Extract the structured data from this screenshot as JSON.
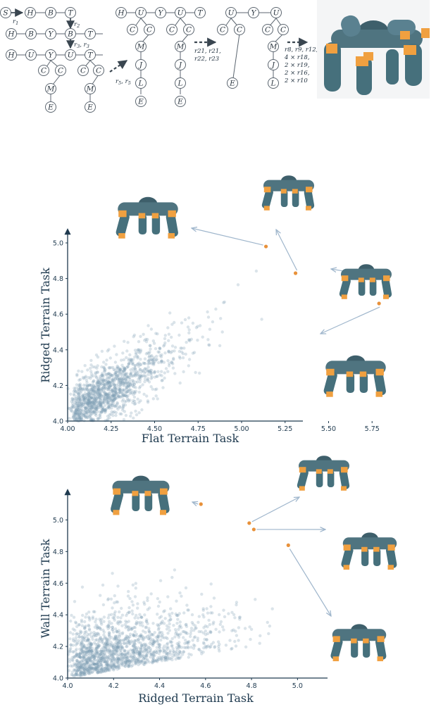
{
  "grammar_diagram": {
    "stage1": {
      "start_node": "S",
      "rule_first": "r",
      "rule_first_sub": "1",
      "row1": [
        "H",
        "B",
        "T"
      ],
      "rule_second": "r",
      "rule_second_sub": "2",
      "row2": [
        "H",
        "B",
        "Y",
        "B",
        "T"
      ],
      "rule_third": "r",
      "rule_third_sub": "3",
      "rule_third_b": "r",
      "rule_third_b_sub": "3",
      "row3": [
        "H",
        "U",
        "Y",
        "U",
        "T"
      ],
      "row3_children": [
        "C",
        "C",
        "M",
        "E",
        "C",
        "C",
        "M",
        "E"
      ]
    },
    "transition1": "r",
    "transition1_sub": "5",
    "transition1_sep": ", ",
    "transition1_b": "r",
    "transition1_b_sub": "5",
    "stage2": {
      "row1": [
        "H",
        "U",
        "Y",
        "U",
        "T"
      ],
      "chain": [
        "C",
        "C",
        "M",
        "J",
        "L",
        "E"
      ],
      "chain2": [
        "C",
        "C",
        "M",
        "J",
        "L",
        "E"
      ]
    },
    "transition2_line1": "r21, r21,",
    "transition2_line2": "r22, r23",
    "stage3": {
      "row1": [
        "U",
        "Y",
        "U"
      ],
      "chain": [
        "C",
        "C",
        "M",
        "J",
        "L",
        "E"
      ]
    },
    "transition3_lines": [
      "r8, r9, r12,",
      "4 × r18,",
      "2 × r19,",
      "2 × r16,",
      "2 × r10"
    ]
  },
  "colors": {
    "point_default": "#7f9db5",
    "point_highlight": "#e8913a",
    "axis": "#1f3a4f",
    "robot_body": "#4f7480",
    "robot_joint": "#f0a040"
  },
  "chart_data": [
    {
      "type": "scatter",
      "xlabel": "Flat Terrain Task",
      "ylabel": "Ridged Terrain Task",
      "xlim": [
        4.0,
        6.0
      ],
      "ylim": [
        4.0,
        5.0
      ],
      "xticks": [
        "4.00",
        "4.25",
        "4.50",
        "4.75",
        "5.00",
        "5.25",
        "5.50",
        "5.75"
      ],
      "yticks": [
        "4.0",
        "4.2",
        "4.4",
        "4.6",
        "4.8",
        "5.0"
      ],
      "cloud": {
        "n": 1400,
        "description_free": true,
        "x_range": [
          4.0,
          5.4
        ],
        "y_range": [
          4.0,
          4.9
        ]
      },
      "highlighted_points": [
        {
          "x": 5.14,
          "y": 4.98
        },
        {
          "x": 5.31,
          "y": 4.83
        },
        {
          "x": 5.74,
          "y": 4.81
        },
        {
          "x": 5.79,
          "y": 4.66
        }
      ],
      "grid": false
    },
    {
      "type": "scatter",
      "xlabel": "Ridged Terrain Task",
      "ylabel": "Wall Terrain Task",
      "xlim": [
        4.0,
        5.1
      ],
      "ylim": [
        4.0,
        5.1
      ],
      "xticks": [
        "4.0",
        "4.2",
        "4.4",
        "4.6",
        "4.8",
        "5.0"
      ],
      "yticks": [
        "4.0",
        "4.2",
        "4.4",
        "4.6",
        "4.8",
        "5.0"
      ],
      "cloud": {
        "n": 1500,
        "x_range": [
          4.0,
          4.9
        ],
        "y_range": [
          4.0,
          4.85
        ]
      },
      "highlighted_points": [
        {
          "x": 4.58,
          "y": 5.1
        },
        {
          "x": 4.79,
          "y": 4.98
        },
        {
          "x": 4.81,
          "y": 4.94
        },
        {
          "x": 4.96,
          "y": 4.84
        }
      ],
      "grid": false
    }
  ]
}
